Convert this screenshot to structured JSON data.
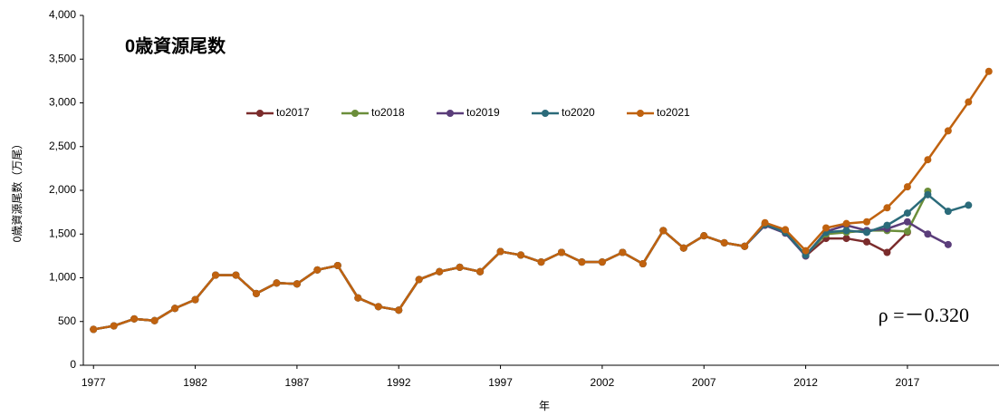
{
  "chart_data": {
    "type": "line",
    "title": "0歳資源尾数",
    "x_label": "年",
    "y_label": "0歳資源尾数（万尾）",
    "annotation": "ρ =－0.320",
    "grid": false,
    "legend": "top-center",
    "x": [
      1977,
      1978,
      1979,
      1980,
      1981,
      1982,
      1983,
      1984,
      1985,
      1986,
      1987,
      1988,
      1989,
      1990,
      1991,
      1992,
      1993,
      1994,
      1995,
      1996,
      1997,
      1998,
      1999,
      2000,
      2001,
      2002,
      2003,
      2004,
      2005,
      2006,
      2007,
      2008,
      2009,
      2010,
      2011,
      2012,
      2013,
      2014,
      2015,
      2016,
      2017,
      2018,
      2019,
      2020,
      2021
    ],
    "xlim": [
      1976.5,
      2021.5
    ],
    "xticks": [
      1977,
      1982,
      1987,
      1992,
      1997,
      2002,
      2007,
      2012,
      2017
    ],
    "ylim": [
      0,
      4000
    ],
    "yticks": [
      0,
      {
        "value": 500,
        "label": "500"
      },
      {
        "value": 1000,
        "label": "1,000"
      },
      {
        "value": 1500,
        "label": "1,500"
      },
      {
        "value": 2000,
        "label": "2,000"
      },
      {
        "value": 2500,
        "label": "2,500"
      },
      {
        "value": 3000,
        "label": "3,000"
      },
      {
        "value": 3500,
        "label": "3,500"
      },
      {
        "value": 4000,
        "label": "4,000"
      }
    ],
    "series": [
      {
        "name": "to2017",
        "color": "#7b2c2c",
        "values": [
          410,
          450,
          530,
          510,
          650,
          750,
          1030,
          1030,
          820,
          940,
          930,
          1090,
          1140,
          770,
          670,
          630,
          980,
          1070,
          1120,
          1070,
          1300,
          1260,
          1180,
          1290,
          1180,
          1180,
          1290,
          1160,
          1540,
          1340,
          1480,
          1400,
          1360,
          1620,
          1530,
          1250,
          1450,
          1450,
          1410,
          1290,
          1520,
          null,
          null,
          null,
          null
        ]
      },
      {
        "name": "to2018",
        "color": "#6b8e3a",
        "values": [
          410,
          450,
          530,
          510,
          650,
          750,
          1030,
          1030,
          820,
          940,
          930,
          1090,
          1140,
          770,
          670,
          630,
          980,
          1070,
          1120,
          1070,
          1300,
          1260,
          1180,
          1290,
          1180,
          1180,
          1290,
          1160,
          1540,
          1340,
          1480,
          1400,
          1360,
          1620,
          1520,
          1260,
          1500,
          1520,
          1540,
          1540,
          1530,
          1990,
          null,
          null,
          null
        ]
      },
      {
        "name": "to2019",
        "color": "#5a3d7a",
        "values": [
          410,
          450,
          530,
          510,
          650,
          750,
          1030,
          1030,
          820,
          940,
          930,
          1090,
          1140,
          770,
          670,
          630,
          980,
          1070,
          1120,
          1070,
          1300,
          1260,
          1180,
          1290,
          1180,
          1180,
          1290,
          1160,
          1540,
          1340,
          1480,
          1400,
          1360,
          1600,
          1510,
          1250,
          1530,
          1600,
          1540,
          1560,
          1640,
          1500,
          1380,
          null,
          null
        ]
      },
      {
        "name": "to2020",
        "color": "#2b6b7a",
        "values": [
          410,
          450,
          530,
          510,
          650,
          750,
          1030,
          1030,
          820,
          940,
          930,
          1090,
          1140,
          770,
          670,
          630,
          980,
          1070,
          1120,
          1070,
          1300,
          1260,
          1180,
          1290,
          1180,
          1180,
          1290,
          1160,
          1540,
          1340,
          1480,
          1400,
          1360,
          1610,
          1520,
          1260,
          1520,
          1540,
          1520,
          1600,
          1740,
          1950,
          1760,
          1830,
          null
        ]
      },
      {
        "name": "to2021",
        "color": "#c0620f",
        "values": [
          410,
          450,
          530,
          510,
          650,
          750,
          1030,
          1030,
          820,
          940,
          930,
          1090,
          1140,
          770,
          670,
          630,
          980,
          1070,
          1120,
          1070,
          1300,
          1260,
          1180,
          1290,
          1180,
          1180,
          1290,
          1160,
          1540,
          1340,
          1480,
          1400,
          1360,
          1630,
          1550,
          1310,
          1570,
          1620,
          1640,
          1800,
          2040,
          2350,
          2680,
          3010,
          3360
        ]
      }
    ]
  }
}
